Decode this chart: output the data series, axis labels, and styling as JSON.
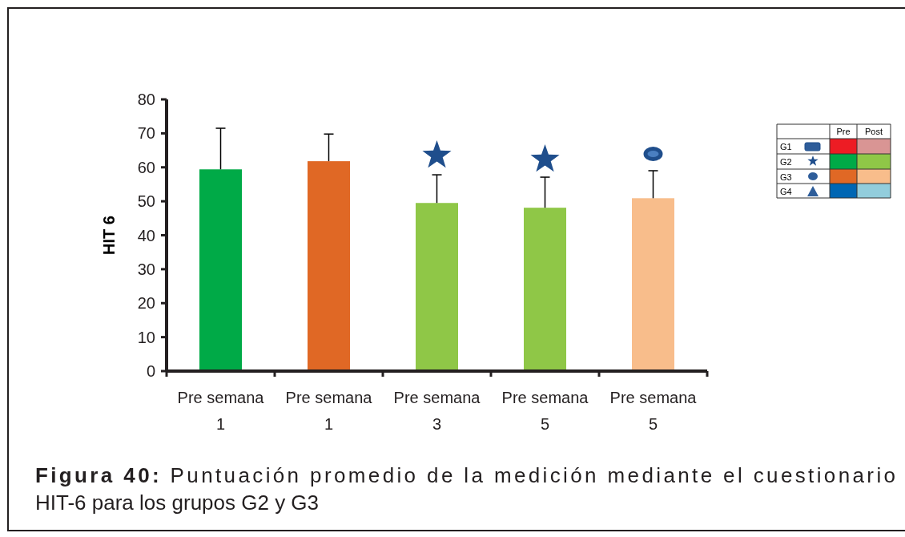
{
  "chart_data": {
    "type": "bar",
    "ylabel": "HIT 6",
    "categories": [
      "Pre semana 1",
      "Pre semana 1",
      "Pre semana 3",
      "Pre semana 5",
      "Pre semana 5"
    ],
    "values": [
      59.4,
      61.8,
      49.5,
      48.1,
      50.9
    ],
    "colors": [
      "#00aa47",
      "#e06825",
      "#8fc747",
      "#8fc747",
      "#f8bd8b"
    ],
    "errors": [
      [
        59.4,
        71.5
      ],
      [
        61.8,
        69.8
      ],
      [
        49.5,
        57.8
      ],
      [
        48.1,
        57.1
      ],
      [
        50.9,
        59
      ]
    ],
    "ylim": [
      0,
      80
    ],
    "yticks": [
      0,
      10,
      20,
      30,
      40,
      50,
      60,
      70,
      80
    ],
    "annotations": [
      "Pre",
      "Post",
      "G1",
      "G2",
      "G3",
      "G4",
      "Figura 40: Puntuación promedio de la medición mediante el cuestionario HIT-6 para los grupos G2 y G3"
    ]
  }
}
